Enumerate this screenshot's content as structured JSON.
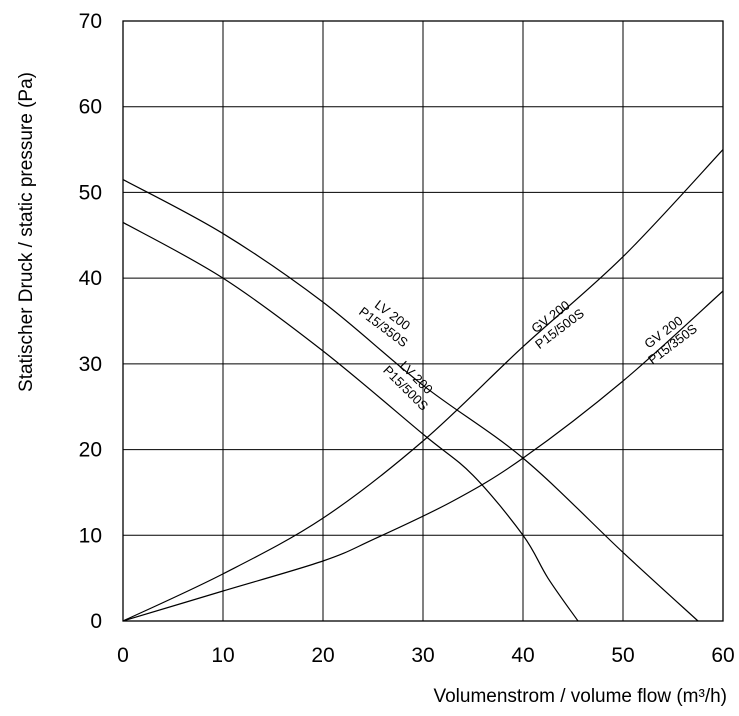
{
  "chart_data": {
    "type": "line",
    "title": "",
    "xlabel": "Volumenstrom / volume flow (m³/h)",
    "ylabel": "Statischer Druck / static pressure (Pa)",
    "xlim": [
      0,
      60
    ],
    "ylim": [
      0,
      70
    ],
    "x_ticks": [
      "0",
      "10",
      "20",
      "30",
      "40",
      "50",
      "60"
    ],
    "y_ticks": [
      "0",
      "10",
      "20",
      "30",
      "40",
      "50",
      "60",
      "70"
    ],
    "grid": true,
    "legend": "none",
    "colors": {
      "axes": "#000000",
      "grid": "#000000",
      "series": "#000000"
    },
    "series": [
      {
        "name": "LV 200 / P15/350S",
        "label_lines": [
          "LV 200",
          "P15/350S"
        ],
        "points": [
          [
            0,
            51.5
          ],
          [
            10,
            45.2
          ],
          [
            20,
            37.2
          ],
          [
            30,
            27.5
          ],
          [
            40,
            19
          ],
          [
            50,
            8
          ],
          [
            57.5,
            0
          ]
        ]
      },
      {
        "name": "LV 200 / P15/500S",
        "label_lines": [
          "LV 200",
          "P15/500S"
        ],
        "points": [
          [
            0,
            46.5
          ],
          [
            10,
            40
          ],
          [
            20,
            31.5
          ],
          [
            30,
            21.8
          ],
          [
            35,
            17
          ],
          [
            40,
            10
          ],
          [
            42.5,
            5
          ],
          [
            45.5,
            0
          ]
        ]
      },
      {
        "name": "GV 200 / P15/500S",
        "label_lines": [
          "GV 200",
          "P15/500S"
        ],
        "points": [
          [
            0,
            0
          ],
          [
            10,
            5.5
          ],
          [
            20,
            12
          ],
          [
            30,
            21
          ],
          [
            40,
            32
          ],
          [
            50,
            42.5
          ],
          [
            60,
            55
          ]
        ]
      },
      {
        "name": "GV 200 / P15/350S",
        "label_lines": [
          "GV 200",
          "P15/350S"
        ],
        "points": [
          [
            0,
            0
          ],
          [
            10,
            3.5
          ],
          [
            20,
            7
          ],
          [
            25,
            9.5
          ],
          [
            33,
            14
          ],
          [
            40,
            19
          ],
          [
            50,
            28
          ],
          [
            60,
            38.5
          ]
        ]
      }
    ],
    "annotations": [
      {
        "lines": [
          "LV 200",
          "P15/350S"
        ],
        "x": 26.5,
        "y": 35,
        "angle": 37
      },
      {
        "lines": [
          "LV 200",
          "P15/500S"
        ],
        "x": 28.8,
        "y": 27.8,
        "angle": 45
      },
      {
        "lines": [
          "GV 200",
          "P15/500S"
        ],
        "x": 43.2,
        "y": 34.8,
        "angle": -37
      },
      {
        "lines": [
          "GV 200",
          "P15/350S"
        ],
        "x": 54.5,
        "y": 33,
        "angle": -37
      }
    ]
  }
}
